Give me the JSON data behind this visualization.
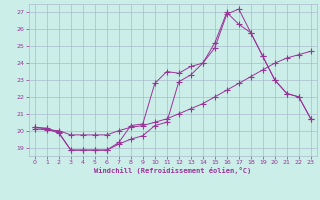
{
  "xlabel": "Windchill (Refroidissement éolien,°C)",
  "background_color": "#cceee8",
  "grid_color": "#aabbcc",
  "line_color": "#993399",
  "xlim": [
    -0.5,
    23.5
  ],
  "ylim": [
    18.5,
    27.5
  ],
  "xticks": [
    0,
    1,
    2,
    3,
    4,
    5,
    6,
    7,
    8,
    9,
    10,
    11,
    12,
    13,
    14,
    15,
    16,
    17,
    18,
    19,
    20,
    21,
    22,
    23
  ],
  "yticks": [
    19,
    20,
    21,
    22,
    23,
    24,
    25,
    26,
    27
  ],
  "line1_x": [
    0,
    1,
    2,
    3,
    4,
    5,
    6,
    7,
    8,
    9,
    10,
    11,
    12,
    13,
    14,
    15,
    16,
    17,
    18,
    19,
    20,
    21,
    22,
    23
  ],
  "line1_y": [
    20.1,
    20.05,
    20.0,
    19.75,
    19.75,
    19.75,
    19.75,
    20.0,
    20.2,
    20.3,
    20.5,
    20.7,
    21.0,
    21.3,
    21.6,
    22.0,
    22.4,
    22.8,
    23.2,
    23.6,
    24.0,
    24.3,
    24.5,
    24.7
  ],
  "line2_x": [
    0,
    1,
    2,
    3,
    4,
    5,
    6,
    7,
    8,
    9,
    10,
    11,
    12,
    13,
    14,
    15,
    16,
    17,
    18,
    19,
    20,
    21,
    22,
    23
  ],
  "line2_y": [
    20.2,
    20.1,
    19.85,
    18.85,
    18.85,
    18.85,
    18.85,
    19.2,
    19.5,
    19.7,
    20.3,
    20.5,
    22.9,
    23.3,
    24.0,
    25.2,
    27.0,
    26.3,
    25.8,
    24.4,
    23.0,
    22.2,
    22.0,
    20.7
  ],
  "line3_x": [
    0,
    1,
    2,
    3,
    4,
    5,
    6,
    7,
    8,
    9,
    10,
    11,
    12,
    13,
    14,
    15,
    16,
    17,
    18,
    19,
    20,
    21,
    22,
    23
  ],
  "line3_y": [
    20.2,
    20.15,
    19.9,
    18.85,
    18.85,
    18.85,
    18.85,
    19.3,
    20.3,
    20.4,
    22.8,
    23.5,
    23.4,
    23.8,
    24.0,
    24.9,
    26.9,
    27.2,
    25.8,
    24.4,
    23.0,
    22.2,
    22.0,
    20.7
  ]
}
